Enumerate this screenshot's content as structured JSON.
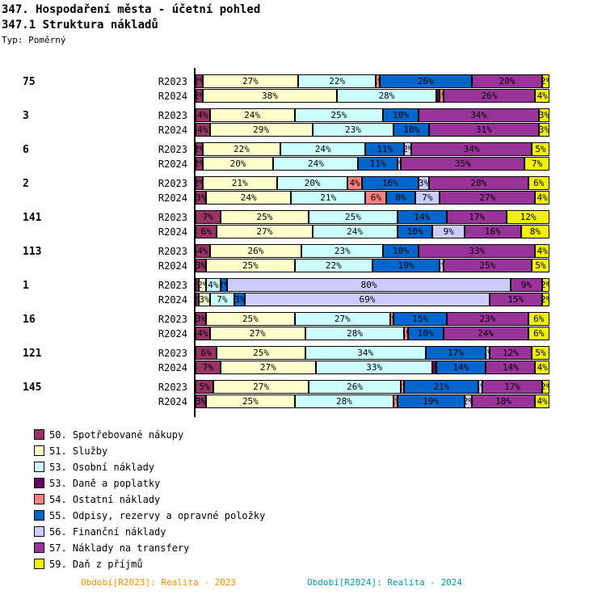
{
  "header": {
    "title": "347. Hospodaření města - účetní pohled",
    "subtitle": "347.1 Struktura nákladů",
    "type_label": "Typ: Poměrný"
  },
  "chart_data": {
    "type": "bar",
    "stacked": true,
    "orientation": "horizontal",
    "unit": "%",
    "axis_range": [
      0,
      100
    ],
    "row_labels": [
      "R2023",
      "R2024"
    ],
    "series": [
      {
        "name": "50. Spotřebované nákupy",
        "color": "#993366"
      },
      {
        "name": "51. Služby",
        "color": "#ffffcc"
      },
      {
        "name": "53. Osobní náklady",
        "color": "#ccffff"
      },
      {
        "name": "53. Daně a poplatky",
        "color": "#660066"
      },
      {
        "name": "54. Ostatní náklady",
        "color": "#ff8080"
      },
      {
        "name": "55. Odpisy, rezervy a opravné položky",
        "color": "#0066cc"
      },
      {
        "name": "56. Finanční náklady",
        "color": "#ccccff"
      },
      {
        "name": "57. Náklady na transfery",
        "color": "#993399"
      },
      {
        "name": "59. Daň z příjmů",
        "color": "#f0f000"
      }
    ],
    "groups": [
      {
        "id": "75",
        "R2023": [
          2,
          27,
          22,
          0,
          1,
          26,
          0,
          20,
          2
        ],
        "R2024": [
          2,
          38,
          28,
          1,
          1,
          0,
          0,
          26,
          4
        ]
      },
      {
        "id": "3",
        "R2023": [
          4,
          24,
          25,
          0,
          0,
          10,
          0,
          34,
          3
        ],
        "R2024": [
          4,
          29,
          23,
          0,
          0,
          10,
          0,
          31,
          3
        ]
      },
      {
        "id": "6",
        "R2023": [
          2,
          22,
          24,
          0,
          0,
          11,
          2,
          34,
          5
        ],
        "R2024": [
          2,
          20,
          24,
          0,
          0,
          11,
          1,
          35,
          7
        ]
      },
      {
        "id": "2",
        "R2023": [
          2,
          21,
          20,
          0,
          4,
          16,
          3,
          28,
          6
        ],
        "R2024": [
          3,
          24,
          21,
          0,
          6,
          8,
          7,
          27,
          4
        ]
      },
      {
        "id": "141",
        "R2023": [
          7,
          25,
          25,
          0,
          0,
          14,
          0,
          17,
          12
        ],
        "R2024": [
          6,
          27,
          24,
          0,
          0,
          10,
          9,
          16,
          8
        ]
      },
      {
        "id": "113",
        "R2023": [
          4,
          26,
          23,
          0,
          0,
          10,
          0,
          33,
          4
        ],
        "R2024": [
          3,
          25,
          22,
          0,
          0,
          19,
          1,
          25,
          5
        ]
      },
      {
        "id": "1",
        "R2023": [
          1,
          2,
          4,
          0,
          0,
          2,
          80,
          9,
          2
        ],
        "R2024": [
          1,
          3,
          7,
          0,
          0,
          3,
          69,
          15,
          2
        ]
      },
      {
        "id": "16",
        "R2023": [
          3,
          25,
          27,
          0,
          1,
          15,
          0,
          23,
          6
        ],
        "R2024": [
          4,
          27,
          28,
          0,
          1,
          10,
          0,
          24,
          6
        ]
      },
      {
        "id": "121",
        "R2023": [
          6,
          25,
          34,
          0,
          0,
          17,
          1,
          12,
          5
        ],
        "R2024": [
          7,
          27,
          33,
          1,
          0,
          14,
          0,
          14,
          4
        ]
      },
      {
        "id": "145",
        "R2023": [
          5,
          27,
          26,
          0,
          1,
          21,
          1,
          17,
          2
        ],
        "R2024": [
          3,
          25,
          28,
          0,
          1,
          19,
          2,
          18,
          4
        ]
      }
    ]
  },
  "footer": {
    "period_2023": "Období[R2023]: Realita - 2023",
    "period_2023_color": "#ff8c00",
    "period_2024": "Období[R2024]: Realita - 2024",
    "period_2024_color": "#0099aa"
  }
}
